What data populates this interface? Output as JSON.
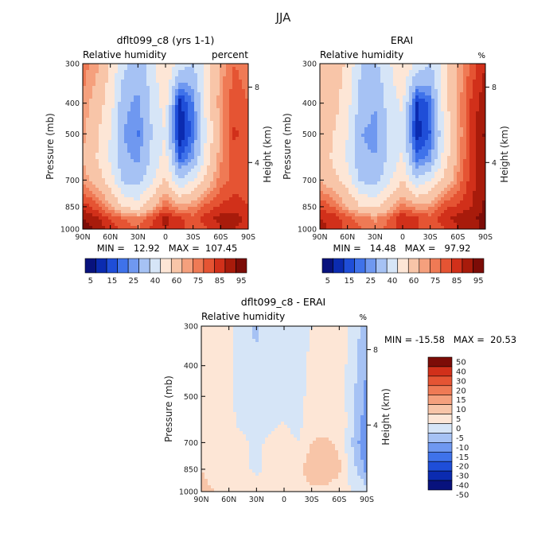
{
  "page": {
    "title": "JJA"
  },
  "panels": [
    {
      "title": "dflt099_c8 (yrs 1-1)",
      "var_label": "Relative humidity",
      "units": "percent",
      "min_max": "MIN =   12.92   MAX =  107.45"
    },
    {
      "title": "ERAI",
      "var_label": "Relative humidity",
      "units": "%",
      "min_max": "MIN =   14.48   MAX =   97.92"
    },
    {
      "title": "dflt099_c8 - ERAI",
      "var_label": "Relative humidity",
      "units": "%",
      "min_max": "MIN = -15.58   MAX =  20.53"
    }
  ],
  "colors": {
    "rh": [
      "#08127d",
      "#0b2bb0",
      "#1f4ed8",
      "#3f72ea",
      "#6f98f0",
      "#a6c2f4",
      "#d6e5f7",
      "#fde6d6",
      "#f8c5a8",
      "#f5a07d",
      "#ef7a55",
      "#e55433",
      "#d1301a",
      "#a81b0b",
      "#7c0c07"
    ],
    "diff": [
      "#08127d",
      "#0b2bb0",
      "#1f4ed8",
      "#3f72ea",
      "#6f98f0",
      "#a6c2f4",
      "#d6e5f7",
      "#fde6d6",
      "#f8c5a8",
      "#f5a07d",
      "#ef7a55",
      "#e55433",
      "#d1301a",
      "#7c0c07"
    ]
  },
  "chart_data": [
    {
      "type": "heatmap",
      "title": "dflt099_c8 (yrs 1-1)",
      "xlabel": "",
      "ylabel": "Pressure (mb)",
      "y2label": "Height (km)",
      "x_ticks": [
        "90N",
        "60N",
        "30N",
        "0",
        "30S",
        "60S",
        "90S"
      ],
      "y_ticks": [
        "300",
        "400",
        "500",
        "700",
        "850",
        "1000"
      ],
      "y2_ticks": [
        "8",
        "4"
      ],
      "legend_ticks": [
        "5",
        "15",
        "25",
        "40",
        "60",
        "75",
        "85",
        "95"
      ],
      "levels": [
        5,
        10,
        15,
        20,
        25,
        30,
        40,
        50,
        60,
        70,
        75,
        80,
        85,
        90,
        95
      ],
      "x": [
        90,
        75,
        60,
        45,
        30,
        15,
        0,
        -15,
        -30,
        -45,
        -60,
        -75,
        -90
      ],
      "y": [
        300,
        400,
        500,
        600,
        700,
        850,
        925,
        1000
      ],
      "z": [
        [
          78,
          72,
          58,
          42,
          35,
          45,
          62,
          45,
          40,
          55,
          72,
          80,
          76
        ],
        [
          74,
          66,
          55,
          32,
          28,
          42,
          55,
          12,
          25,
          55,
          74,
          84,
          80
        ],
        [
          72,
          62,
          50,
          30,
          24,
          40,
          50,
          10,
          22,
          52,
          72,
          86,
          82
        ],
        [
          70,
          60,
          48,
          32,
          28,
          42,
          55,
          20,
          30,
          56,
          74,
          84,
          82
        ],
        [
          74,
          66,
          55,
          38,
          35,
          48,
          62,
          40,
          50,
          64,
          78,
          82,
          80
        ],
        [
          88,
          82,
          72,
          58,
          55,
          68,
          80,
          72,
          75,
          82,
          86,
          88,
          85
        ],
        [
          95,
          92,
          85,
          80,
          76,
          84,
          92,
          86,
          82,
          88,
          92,
          92,
          88
        ],
        [
          98,
          94,
          88,
          84,
          80,
          86,
          90,
          88,
          80,
          84,
          90,
          90,
          88
        ]
      ],
      "min": 12.92,
      "max": 107.45
    },
    {
      "type": "heatmap",
      "title": "ERAI",
      "xlabel": "",
      "ylabel": "Pressure (mb)",
      "y2label": "Height (km)",
      "x_ticks": [
        "90N",
        "60N",
        "30N",
        "0",
        "30S",
        "60S",
        "90S"
      ],
      "y_ticks": [
        "300",
        "400",
        "500",
        "700",
        "850",
        "1000"
      ],
      "y2_ticks": [
        "8",
        "4"
      ],
      "legend_ticks": [
        "5",
        "15",
        "25",
        "40",
        "60",
        "75",
        "85",
        "95"
      ],
      "levels": [
        5,
        10,
        15,
        20,
        25,
        30,
        40,
        50,
        60,
        70,
        75,
        80,
        85,
        90,
        95
      ],
      "x": [
        90,
        75,
        60,
        45,
        30,
        15,
        0,
        -15,
        -30,
        -45,
        -60,
        -75,
        -90
      ],
      "y": [
        300,
        400,
        500,
        600,
        700,
        850,
        925,
        1000
      ],
      "z": [
        [
          70,
          66,
          58,
          40,
          38,
          48,
          60,
          48,
          40,
          55,
          70,
          82,
          90
        ],
        [
          68,
          64,
          54,
          35,
          30,
          44,
          52,
          14,
          22,
          55,
          72,
          86,
          94
        ],
        [
          66,
          60,
          50,
          30,
          28,
          42,
          48,
          12,
          20,
          50,
          70,
          88,
          96
        ],
        [
          66,
          58,
          48,
          32,
          30,
          42,
          52,
          22,
          28,
          54,
          72,
          88,
          95
        ],
        [
          70,
          64,
          55,
          38,
          35,
          48,
          60,
          42,
          50,
          62,
          76,
          88,
          95
        ],
        [
          84,
          80,
          70,
          60,
          58,
          66,
          78,
          72,
          74,
          84,
          86,
          90,
          96
        ],
        [
          90,
          88,
          82,
          78,
          74,
          80,
          90,
          86,
          82,
          88,
          92,
          94,
          97
        ],
        [
          92,
          88,
          84,
          80,
          76,
          82,
          88,
          86,
          80,
          84,
          90,
          92,
          97
        ]
      ],
      "min": 14.48,
      "max": 97.92
    },
    {
      "type": "heatmap",
      "title": "dflt099_c8 - ERAI",
      "xlabel": "",
      "ylabel": "Pressure (mb)",
      "y2label": "Height (km)",
      "x_ticks": [
        "90N",
        "60N",
        "30N",
        "0",
        "30S",
        "60S",
        "90S"
      ],
      "y_ticks": [
        "300",
        "400",
        "500",
        "700",
        "850",
        "1000"
      ],
      "y2_ticks": [
        "8",
        "4"
      ],
      "legend_ticks": [
        "50",
        "40",
        "30",
        "20",
        "15",
        "10",
        "5",
        "0",
        "-5",
        "-10",
        "-15",
        "-20",
        "-30",
        "-40",
        "-50"
      ],
      "levels": [
        -50,
        -40,
        -30,
        -20,
        -15,
        -10,
        -5,
        0,
        5,
        10,
        15,
        20,
        30,
        40,
        50
      ],
      "x": [
        90,
        75,
        60,
        45,
        30,
        15,
        0,
        -15,
        -30,
        -45,
        -60,
        -75,
        -90
      ],
      "y": [
        300,
        400,
        500,
        600,
        700,
        850,
        925,
        1000
      ],
      "z": [
        [
          4,
          3,
          1,
          -3,
          -6,
          -2,
          -3,
          -4,
          0,
          2,
          4,
          -2,
          -8
        ],
        [
          3,
          2,
          1,
          -4,
          -4,
          -2,
          -2,
          -3,
          2,
          2,
          3,
          -3,
          -10
        ],
        [
          4,
          2,
          1,
          -2,
          -4,
          -2,
          -1,
          -2,
          2,
          3,
          2,
          -4,
          -12
        ],
        [
          3,
          2,
          1,
          -1,
          -3,
          -1,
          0,
          -2,
          3,
          3,
          4,
          -3,
          -14
        ],
        [
          3,
          2,
          1,
          1,
          -1,
          1,
          2,
          0,
          5,
          6,
          4,
          -6,
          -16
        ],
        [
          5,
          3,
          2,
          1,
          -1,
          1,
          2,
          4,
          8,
          10,
          6,
          -3,
          -12
        ],
        [
          6,
          4,
          3,
          2,
          1,
          2,
          3,
          3,
          6,
          6,
          4,
          -2,
          -6
        ],
        [
          6,
          5,
          3,
          2,
          1,
          2,
          3,
          4,
          4,
          3,
          2,
          0,
          -4
        ]
      ],
      "min": -15.58,
      "max": 20.53
    }
  ]
}
